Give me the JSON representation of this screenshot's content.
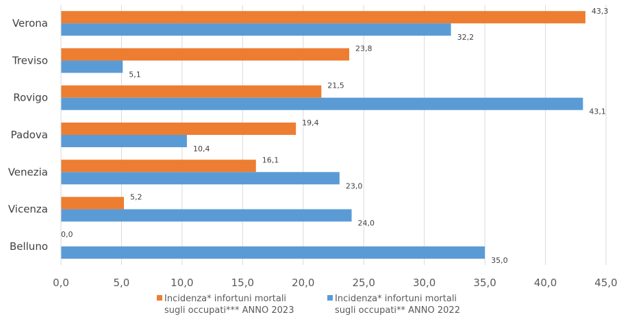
{
  "chart_data": {
    "type": "bar",
    "orientation": "horizontal",
    "categories": [
      "Verona",
      "Treviso",
      "Rovigo",
      "Padova",
      "Venezia",
      "Vicenza",
      "Belluno"
    ],
    "value_labels_as_printed": true,
    "series": [
      {
        "name": "Incidenza* infortuni mortali sugli occupati*** ANNO 2023",
        "legend_lines": [
          "Incidenza* infortuni mortali",
          "sugli occupati*** ANNO 2023"
        ],
        "color": "#ED7D31",
        "values": [
          43.3,
          23.8,
          21.5,
          19.4,
          16.1,
          5.2,
          0.0
        ],
        "labels": [
          "43,3",
          "23,8",
          "21,5",
          "19,4",
          "16,1",
          "5,2",
          "0,0"
        ]
      },
      {
        "name": "Incidenza* infortuni mortali sugli occupati** ANNO 2022",
        "legend_lines": [
          "Incidenza* infortuni mortali",
          "sugli occupati** ANNO 2022"
        ],
        "color": "#5B9BD5",
        "values": [
          32.2,
          5.1,
          43.1,
          10.4,
          23.0,
          24.0,
          35.0
        ],
        "labels": [
          "32,2",
          "5,1",
          "43,1",
          "10,4",
          "23,0",
          "24,0",
          "35,0"
        ]
      }
    ],
    "x_ticks": [
      "0,0",
      "5,0",
      "10,0",
      "15,0",
      "20,0",
      "25,0",
      "30,0",
      "35,0",
      "40,0",
      "45,0"
    ],
    "xlim": [
      0,
      45
    ],
    "x_tick_step": 5,
    "grid": true,
    "legend_position": "bottom",
    "title": "",
    "xlabel": "",
    "ylabel": ""
  }
}
